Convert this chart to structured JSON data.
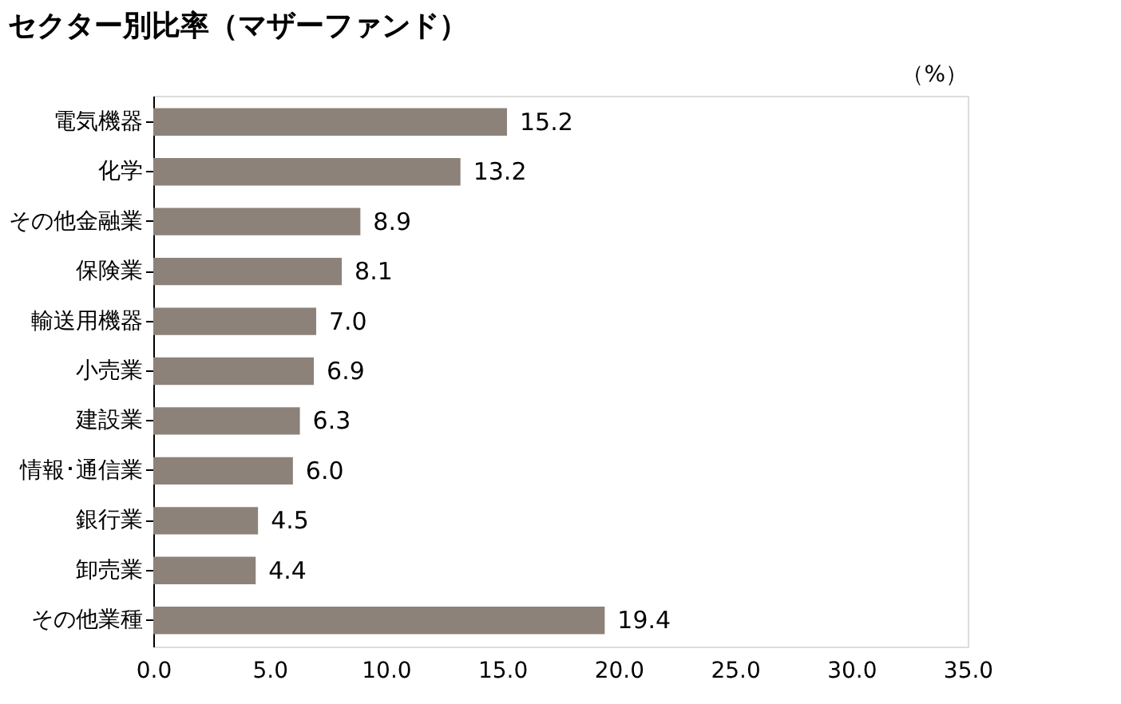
{
  "chart_data": {
    "type": "bar",
    "orientation": "horizontal",
    "title": "セクター別比率（マザーファンド）",
    "categories": [
      "電気機器",
      "化学",
      "その他金融業",
      "保険業",
      "輸送用機器",
      "小売業",
      "建設業",
      "情報･通信業",
      "銀行業",
      "卸売業",
      "その他業種"
    ],
    "values": [
      15.2,
      13.2,
      8.9,
      8.1,
      7.0,
      6.9,
      6.3,
      6.0,
      4.5,
      4.4,
      19.4
    ],
    "value_labels": [
      "15.2",
      "13.2",
      "8.9",
      "8.1",
      "7.0",
      "6.9",
      "6.3",
      "6.0",
      "4.5",
      "4.4",
      "19.4"
    ],
    "color": "#8c8279",
    "xlim": [
      0,
      35
    ],
    "xticks": [
      {
        "value": 0,
        "label": "0.0"
      },
      {
        "value": 5,
        "label": "5.0"
      },
      {
        "value": 10,
        "label": "10.0"
      },
      {
        "value": 15,
        "label": "15.0"
      },
      {
        "value": 20,
        "label": "20.0"
      },
      {
        "value": 25,
        "label": "25.0"
      },
      {
        "value": 30,
        "label": "30.0"
      },
      {
        "value": 35,
        "label": "35.0"
      }
    ],
    "annotations": [
      "（%）"
    ],
    "grid": false
  }
}
